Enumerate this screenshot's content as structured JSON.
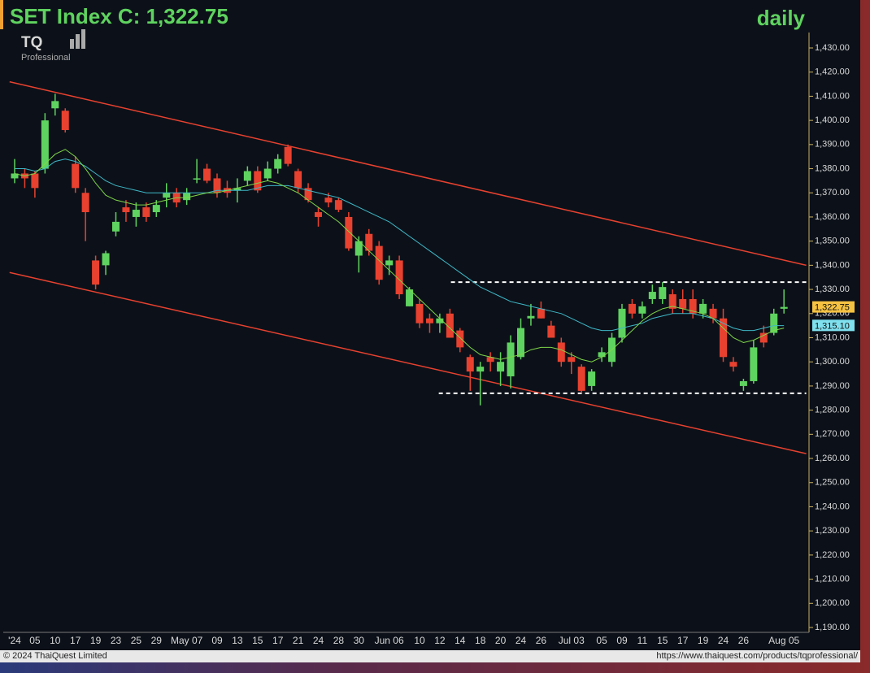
{
  "chart_data": {
    "type": "candlestick",
    "title": "SET Index C: 1,322.75",
    "subtitle": "daily",
    "logo": {
      "mark": "TQ",
      "text": "Professional"
    },
    "footer": {
      "left": "© 2024 ThaiQuest Limited",
      "right": "https://www.thaiquest.com/products/tqprofessional/"
    },
    "up_color": "#5fd35f",
    "down_color": "#e8412f",
    "categories": [
      "'24",
      null,
      "05",
      null,
      "10",
      null,
      "17",
      null,
      "19",
      null,
      "23",
      null,
      "25",
      null,
      "29",
      null,
      null,
      "May 07",
      null,
      null,
      "09",
      null,
      "13",
      null,
      "15",
      null,
      "17",
      null,
      "21",
      null,
      "24",
      null,
      "28",
      null,
      "30",
      null,
      null,
      "Jun 06",
      null,
      null,
      "10",
      null,
      "12",
      null,
      "14",
      null,
      "18",
      null,
      "20",
      null,
      "24",
      null,
      "26",
      null,
      null,
      "Jul 03",
      null,
      null,
      "05",
      null,
      "09",
      null,
      "11",
      null,
      "15",
      null,
      "17",
      null,
      "19",
      null,
      "24",
      null,
      "26",
      null,
      null,
      null,
      "Aug 05"
    ],
    "open": [
      1376,
      1378,
      1378,
      1380,
      1405,
      1404,
      1382,
      1370,
      1342,
      1340,
      1354,
      1364,
      1360,
      1364,
      1362,
      1368,
      1370,
      1367,
      1376,
      1380,
      1376,
      1372,
      1371,
      1375,
      1379,
      1376,
      1380,
      1389,
      1379,
      1372,
      1362,
      1368,
      1367,
      1360,
      1344,
      1353,
      1348,
      1340,
      1342,
      1323,
      1324,
      1318,
      1316,
      1320,
      1313,
      1302,
      1296,
      1302,
      1296,
      1294,
      1302,
      1318,
      1322,
      1315,
      1308,
      1302,
      1298,
      1290,
      1302,
      1300,
      1310,
      1324,
      1320,
      1326,
      1326,
      1328,
      1326,
      1326,
      1320,
      1322,
      1318,
      1300,
      1290,
      1292,
      1312,
      1312,
      1322
    ],
    "high": [
      1384,
      1380,
      1379,
      1403,
      1411,
      1405,
      1385,
      1372,
      1344,
      1346,
      1362,
      1367,
      1366,
      1366,
      1367,
      1374,
      1372,
      1372,
      1384,
      1382,
      1378,
      1375,
      1376,
      1381,
      1381,
      1383,
      1386,
      1390,
      1380,
      1374,
      1364,
      1370,
      1368,
      1362,
      1352,
      1355,
      1350,
      1344,
      1344,
      1331,
      1326,
      1320,
      1320,
      1322,
      1314,
      1303,
      1300,
      1304,
      1304,
      1311,
      1318,
      1324,
      1325,
      1317,
      1310,
      1304,
      1299,
      1297,
      1306,
      1312,
      1324,
      1326,
      1325,
      1332,
      1333,
      1330,
      1330,
      1330,
      1326,
      1324,
      1322,
      1302,
      1293,
      1309,
      1315,
      1322,
      1330
    ],
    "low": [
      1374,
      1372,
      1368,
      1378,
      1402,
      1395,
      1370,
      1350,
      1330,
      1336,
      1352,
      1358,
      1356,
      1358,
      1360,
      1364,
      1364,
      1365,
      1374,
      1374,
      1368,
      1368,
      1366,
      1373,
      1370,
      1375,
      1378,
      1381,
      1370,
      1366,
      1356,
      1364,
      1362,
      1346,
      1337,
      1344,
      1332,
      1336,
      1326,
      1323,
      1314,
      1312,
      1312,
      1310,
      1304,
      1288,
      1282,
      1296,
      1290,
      1289,
      1301,
      1315,
      1318,
      1310,
      1298,
      1295,
      1287,
      1288,
      1300,
      1298,
      1308,
      1318,
      1318,
      1324,
      1324,
      1320,
      1320,
      1318,
      1318,
      1316,
      1300,
      1296,
      1288,
      1291,
      1306,
      1311,
      1320
    ],
    "close": [
      1378,
      1376,
      1372,
      1400,
      1408,
      1396,
      1372,
      1362,
      1332,
      1345,
      1358,
      1362,
      1363,
      1360,
      1365,
      1370,
      1366,
      1370,
      1376,
      1375,
      1370,
      1370,
      1372,
      1379,
      1371,
      1380,
      1384,
      1382,
      1372,
      1367,
      1360,
      1366,
      1363,
      1347,
      1350,
      1346,
      1334,
      1342,
      1328,
      1330,
      1316,
      1316,
      1318,
      1310,
      1306,
      1296,
      1298,
      1300,
      1300,
      1308,
      1314,
      1319,
      1318,
      1310,
      1300,
      1300,
      1288,
      1296,
      1304,
      1310,
      1322,
      1320,
      1323,
      1329,
      1331,
      1322,
      1322,
      1320,
      1324,
      1318,
      1302,
      1298,
      1292,
      1306,
      1308,
      1320,
      1322.75
    ],
    "moving_averages": [
      {
        "color": "#3fb8c8",
        "values": [
          1380,
          1380,
          1379,
          1380,
          1383,
          1384,
          1383,
          1381,
          1378,
          1375,
          1373,
          1372,
          1371,
          1370,
          1370,
          1370,
          1370,
          1370,
          1370,
          1370,
          1371,
          1371,
          1371,
          1371,
          1372,
          1373,
          1373,
          1373,
          1372,
          1371,
          1370,
          1369,
          1368,
          1366,
          1364,
          1362,
          1360,
          1358,
          1355,
          1352,
          1349,
          1346,
          1343,
          1340,
          1337,
          1334,
          1331,
          1329,
          1327,
          1325,
          1324,
          1323,
          1322,
          1321,
          1320,
          1318,
          1316,
          1314,
          1313,
          1313,
          1314,
          1315,
          1316,
          1318,
          1319,
          1320,
          1320,
          1320,
          1319,
          1318,
          1316,
          1314,
          1313,
          1313,
          1314,
          1315,
          1315
        ]
      },
      {
        "color": "#7fd64a",
        "values": [
          1378,
          1377,
          1378,
          1382,
          1386,
          1388,
          1385,
          1380,
          1374,
          1369,
          1367,
          1366,
          1365,
          1365,
          1366,
          1367,
          1368,
          1368,
          1369,
          1370,
          1370,
          1371,
          1372,
          1373,
          1374,
          1375,
          1374,
          1372,
          1370,
          1367,
          1364,
          1361,
          1358,
          1354,
          1350,
          1346,
          1342,
          1338,
          1334,
          1330,
          1326,
          1322,
          1318,
          1314,
          1310,
          1306,
          1303,
          1302,
          1301,
          1302,
          1303,
          1305,
          1306,
          1306,
          1305,
          1303,
          1301,
          1300,
          1302,
          1305,
          1309,
          1313,
          1317,
          1320,
          1322,
          1323,
          1322,
          1321,
          1320,
          1318,
          1314,
          1310,
          1308,
          1309,
          1311,
          1313,
          1314
        ]
      }
    ],
    "trend_lines": [
      {
        "color": "#e8412f",
        "start": [
          -0.5,
          1416
        ],
        "end": [
          78.2,
          1340
        ]
      },
      {
        "color": "#e8412f",
        "start": [
          -0.5,
          1337
        ],
        "end": [
          78.2,
          1262
        ]
      },
      {
        "color": "#ffffff",
        "dashed": true,
        "start": [
          43.1,
          1333
        ],
        "end": [
          78.2,
          1333
        ]
      },
      {
        "color": "#ffffff",
        "dashed": true,
        "start": [
          41.9,
          1287
        ],
        "end": [
          78.2,
          1287
        ]
      }
    ],
    "price_tags": [
      {
        "value": 1322.75,
        "label": "1,322.75",
        "color": "#f5c242"
      },
      {
        "value": 1315.1,
        "label": "1,315.10",
        "color": "#7fe0ee"
      }
    ],
    "ylim": [
      1190,
      1430
    ],
    "yticks": [
      {
        "value": 1190,
        "label": "1,190.00"
      },
      {
        "value": 1200,
        "label": "1,200.00"
      },
      {
        "value": 1210,
        "label": "1,210.00"
      },
      {
        "value": 1220,
        "label": "1,220.00"
      },
      {
        "value": 1230,
        "label": "1,230.00"
      },
      {
        "value": 1240,
        "label": "1,240.00"
      },
      {
        "value": 1250,
        "label": "1,250.00"
      },
      {
        "value": 1260,
        "label": "1,260.00"
      },
      {
        "value": 1270,
        "label": "1,270.00"
      },
      {
        "value": 1280,
        "label": "1,280.00"
      },
      {
        "value": 1290,
        "label": "1,290.00"
      },
      {
        "value": 1300,
        "label": "1,300.00"
      },
      {
        "value": 1310,
        "label": "1,310.00"
      },
      {
        "value": 1320,
        "label": "1,320.00"
      },
      {
        "value": 1330,
        "label": "1,330.00"
      },
      {
        "value": 1340,
        "label": "1,340.00"
      },
      {
        "value": 1350,
        "label": "1,350.00"
      },
      {
        "value": 1360,
        "label": "1,360.00"
      },
      {
        "value": 1370,
        "label": "1,370.00"
      },
      {
        "value": 1380,
        "label": "1,380.00"
      },
      {
        "value": 1390,
        "label": "1,390.00"
      },
      {
        "value": 1400,
        "label": "1,400.00"
      },
      {
        "value": 1410,
        "label": "1,410.00"
      },
      {
        "value": 1420,
        "label": "1,420.00"
      },
      {
        "value": 1430,
        "label": "1,430.00"
      }
    ]
  }
}
